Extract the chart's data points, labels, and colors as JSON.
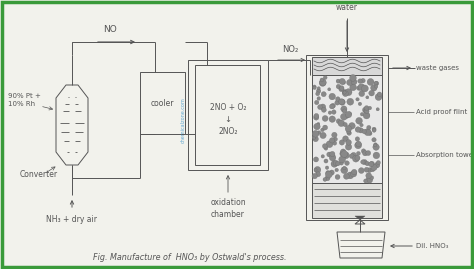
{
  "bg_color": "#f2f2ec",
  "border_color": "#3a9a3a",
  "line_color": "#555555",
  "title": "Fig. Manufacture of  HNO₃ by Ostwald's process.",
  "labels": {
    "NO": "NO",
    "NO2": "NO₂",
    "reaction1": "2NO + O₂",
    "reaction2": "↓",
    "reaction3": "2NO₂",
    "cooler": "cooler",
    "oxidation": "oxidation\nchamber",
    "converter_label": "Converter",
    "converter_contents": "90% Pt +\n10% Rh",
    "nh3": "NH₃ + dry air",
    "water": "water",
    "waste_gases": "waste gases",
    "acid_proof": "Acid proof flint",
    "absorption": "Absorption tower",
    "dil_hno3": "Dil. HNO₃",
    "chemzone": "chemicalzone.com"
  }
}
